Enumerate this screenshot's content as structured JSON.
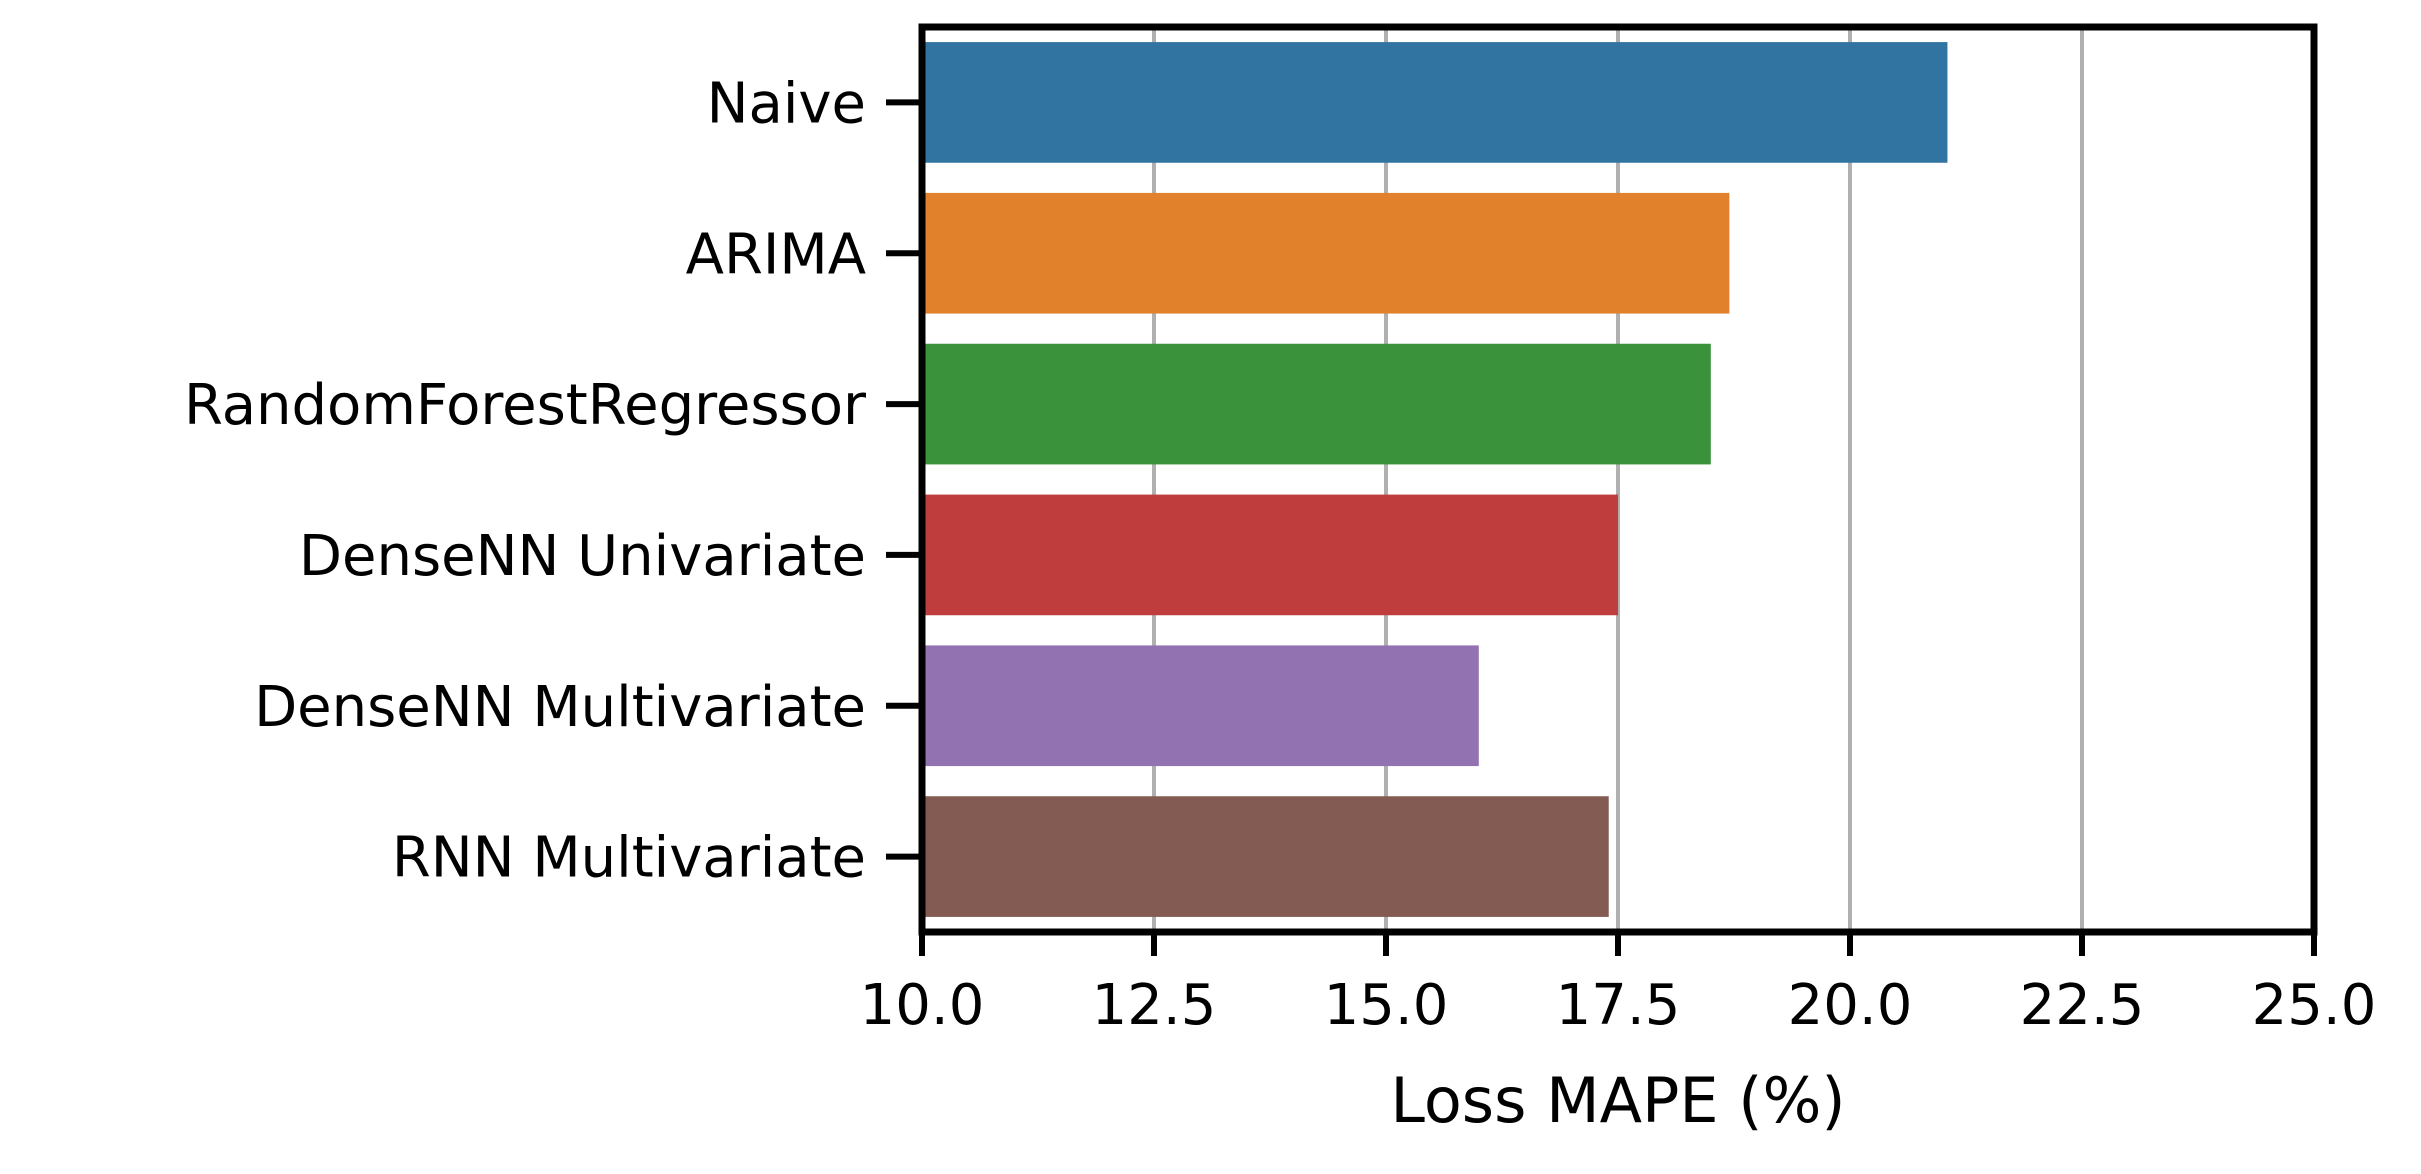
{
  "chart_data": {
    "type": "bar",
    "orientation": "horizontal",
    "categories": [
      "Naive",
      "ARIMA",
      "RandomForestRegressor",
      "DenseNN Univariate",
      "DenseNN Multivariate",
      "RNN Multivariate"
    ],
    "values": [
      21.05,
      18.7,
      18.5,
      17.5,
      16.0,
      17.4
    ],
    "colors": [
      "#3274a1",
      "#e1812c",
      "#3a923a",
      "#c03d3e",
      "#9372b2",
      "#845b53"
    ],
    "xlabel": "Loss MAPE (%)",
    "ylabel": "",
    "xlim": [
      10.0,
      25.0
    ],
    "xticks": [
      "10.0",
      "12.5",
      "15.0",
      "17.5",
      "20.0",
      "22.5",
      "25.0"
    ],
    "grid": "vertical",
    "grid_color": "#b0b0b0",
    "legend": "none"
  }
}
